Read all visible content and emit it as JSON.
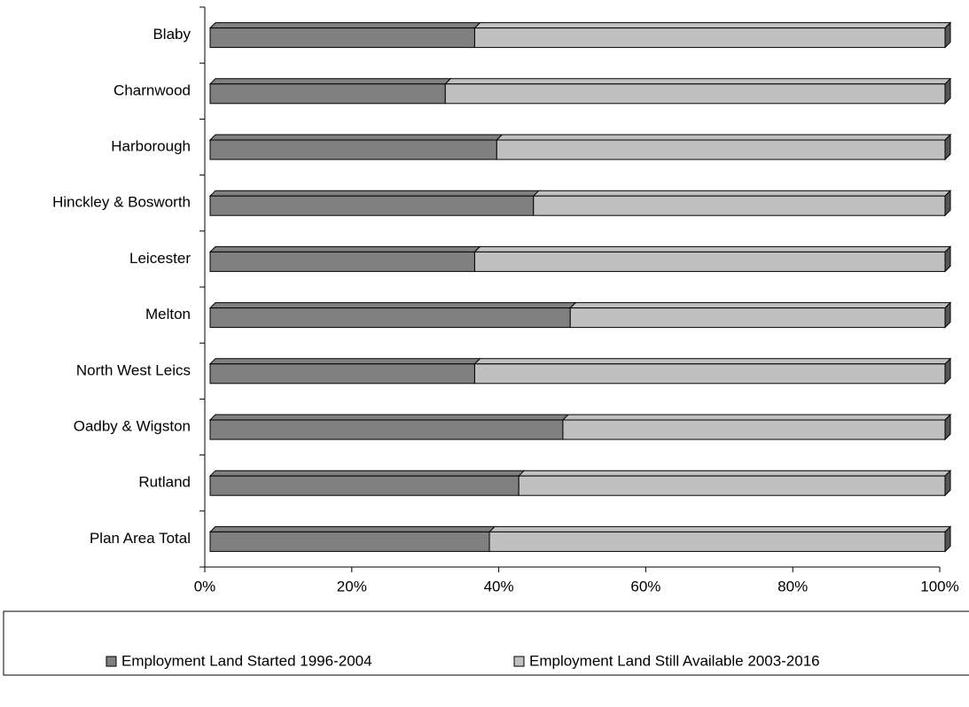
{
  "chart_data": {
    "type": "bar",
    "orientation": "horizontal",
    "stacked": true,
    "categories": [
      "Blaby",
      "Charnwood",
      "Harborough",
      "Hinckley & Bosworth",
      "Leicester",
      "Melton",
      "North West Leics",
      "Oadby & Wigston",
      "Rutland",
      "Plan Area Total"
    ],
    "series": [
      {
        "name": "Employment Land Started 1996-2004",
        "color": "#808080",
        "values": [
          36,
          32,
          39,
          44,
          36,
          49,
          36,
          48,
          42,
          38
        ]
      },
      {
        "name": "Employment Land Still Available 2003-2016",
        "color": "#c0c0c0",
        "values": [
          64,
          68,
          61,
          56,
          64,
          51,
          64,
          52,
          58,
          62
        ]
      }
    ],
    "xlim": [
      0,
      100
    ],
    "xticks": [
      {
        "value": 0,
        "label": "0%"
      },
      {
        "value": 20,
        "label": "20%"
      },
      {
        "value": 40,
        "label": "40%"
      },
      {
        "value": 60,
        "label": "60%"
      },
      {
        "value": 80,
        "label": "80%"
      },
      {
        "value": 100,
        "label": "100%"
      }
    ],
    "legend": "bottom"
  }
}
